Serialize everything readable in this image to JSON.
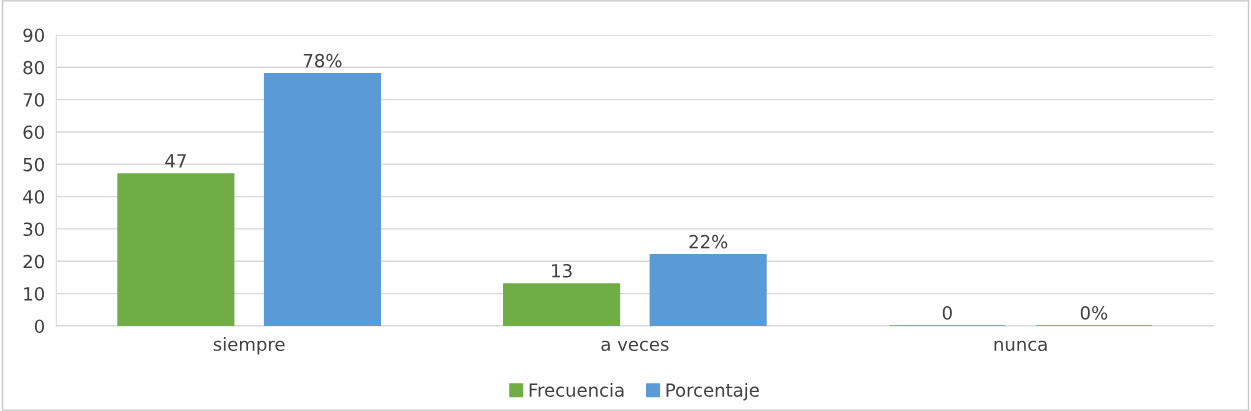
{
  "chart_data": {
    "type": "bar",
    "categories": [
      "siempre",
      "a veces",
      "nunca"
    ],
    "series": [
      {
        "name": "Frecuencia",
        "color": "#70ad47",
        "values": [
          47,
          13,
          0
        ],
        "value_labels": [
          "47",
          "13",
          "0"
        ]
      },
      {
        "name": "Porcentaje",
        "color": "#5b9bd5",
        "values": [
          78,
          22,
          0
        ],
        "value_labels": [
          "78%",
          "22%",
          "0%"
        ]
      }
    ],
    "ylim": [
      0,
      90
    ],
    "yticks": [
      0,
      10,
      20,
      30,
      40,
      50,
      60,
      70,
      80,
      90
    ],
    "grid": "y",
    "legend": "bottom"
  }
}
